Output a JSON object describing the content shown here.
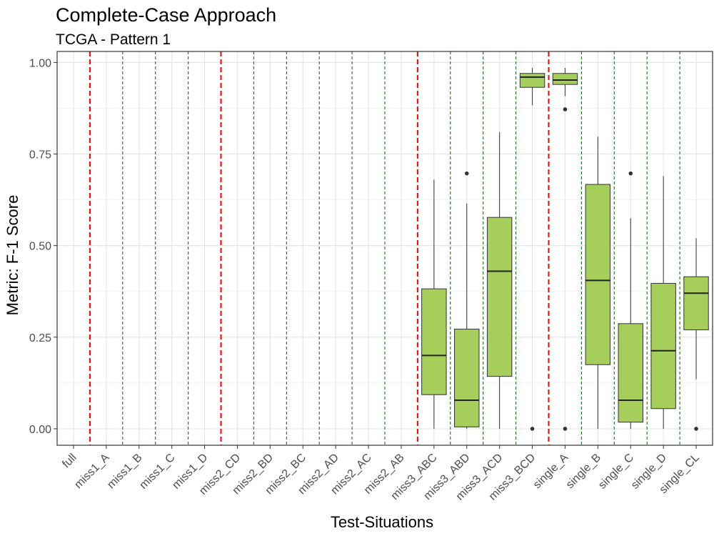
{
  "chart_data": {
    "type": "boxplot",
    "title": "Complete-Case Approach",
    "subtitle": "TCGA - Pattern 1",
    "xlabel": "Test-Situations",
    "ylabel": "Metric: F-1 Score",
    "ylim": [
      -0.045,
      1.03
    ],
    "yticks": [
      0,
      0.25,
      0.5,
      0.75,
      1
    ],
    "ytick_labels": [
      "0.00",
      "0.25",
      "0.50",
      "0.75",
      "1.00"
    ],
    "grid": true,
    "box_fill": "#a6ce5b",
    "colors": {
      "red_separator": "#e31a1c",
      "green_separator": "#1a6e1a"
    },
    "categories": [
      "full",
      "miss1_A",
      "miss1_B",
      "miss1_C",
      "miss1_D",
      "miss2_CD",
      "miss2_BD",
      "miss2_BC",
      "miss2_AD",
      "miss2_AC",
      "miss2_AB",
      "miss3_ABC",
      "miss3_ABD",
      "miss3_ACD",
      "miss3_BCD",
      "single_A",
      "single_B",
      "single_C",
      "single_D",
      "single_CL"
    ],
    "red_separators_before": [
      "miss1_A",
      "miss2_CD",
      "miss3_ABC",
      "single_A"
    ],
    "green_separators_before": [
      "miss1_B",
      "miss1_C",
      "miss1_D",
      "miss2_BD",
      "miss2_BC",
      "miss2_AD",
      "miss2_AC",
      "miss2_AB",
      "miss3_ABD",
      "miss3_ACD",
      "miss3_BCD",
      "single_B",
      "single_C",
      "single_D",
      "single_CL"
    ],
    "boxes": [
      {
        "category": "miss3_ABC",
        "whisker_low": 0.0,
        "q1": 0.093,
        "median": 0.2,
        "q3": 0.382,
        "whisker_high": 0.68,
        "outliers": []
      },
      {
        "category": "miss3_ABD",
        "whisker_low": 0.0,
        "q1": 0.005,
        "median": 0.078,
        "q3": 0.272,
        "whisker_high": 0.615,
        "outliers": [
          0.697
        ]
      },
      {
        "category": "miss3_ACD",
        "whisker_low": 0.0,
        "q1": 0.143,
        "median": 0.43,
        "q3": 0.577,
        "whisker_high": 0.81,
        "outliers": []
      },
      {
        "category": "miss3_BCD",
        "whisker_low": 0.883,
        "q1": 0.932,
        "median": 0.96,
        "q3": 0.97,
        "whisker_high": 0.985,
        "outliers": [
          0.0
        ]
      },
      {
        "category": "single_A",
        "whisker_low": 0.908,
        "q1": 0.94,
        "median": 0.952,
        "q3": 0.97,
        "whisker_high": 0.985,
        "outliers": [
          0.872,
          0.0
        ]
      },
      {
        "category": "single_B",
        "whisker_low": 0.0,
        "q1": 0.175,
        "median": 0.405,
        "q3": 0.667,
        "whisker_high": 0.797,
        "outliers": []
      },
      {
        "category": "single_C",
        "whisker_low": 0.0,
        "q1": 0.018,
        "median": 0.078,
        "q3": 0.287,
        "whisker_high": 0.575,
        "outliers": [
          0.697
        ]
      },
      {
        "category": "single_D",
        "whisker_low": 0.0,
        "q1": 0.055,
        "median": 0.213,
        "q3": 0.397,
        "whisker_high": 0.69,
        "outliers": []
      },
      {
        "category": "single_CL",
        "whisker_low": 0.135,
        "q1": 0.27,
        "median": 0.37,
        "q3": 0.415,
        "whisker_high": 0.52,
        "outliers": [
          0.0
        ]
      }
    ]
  }
}
